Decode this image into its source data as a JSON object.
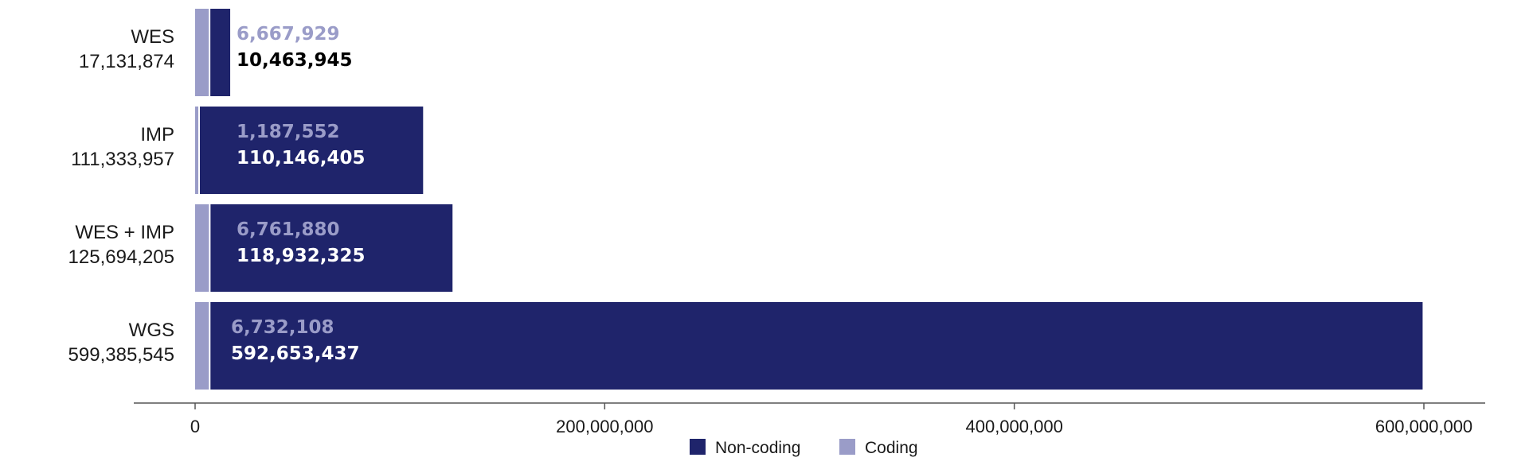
{
  "chart_data": {
    "type": "bar",
    "orientation": "horizontal",
    "stacked": true,
    "categories": [
      {
        "name": "WES",
        "total_label": "17,131,874",
        "total": 17131874
      },
      {
        "name": "IMP",
        "total_label": "111,333,957",
        "total": 111333957
      },
      {
        "name": "WES + IMP",
        "total_label": "125,694,205",
        "total": 125694205
      },
      {
        "name": "WGS",
        "total_label": "599,385,545",
        "total": 599385545
      }
    ],
    "series": [
      {
        "name": "Coding",
        "color": "#9a9cc8",
        "values": [
          6667929,
          1187552,
          6761880,
          6732108
        ],
        "labels": [
          "6,667,929",
          "1,187,552",
          "6,761,880",
          "6,732,108"
        ]
      },
      {
        "name": "Non-coding",
        "color": "#1f246b",
        "values": [
          10463945,
          110146405,
          118932325,
          592653437
        ],
        "labels": [
          "10,463,945",
          "110,146,405",
          "118,932,325",
          "592,653,437"
        ]
      }
    ],
    "xlim": [
      0,
      600000000
    ],
    "xticks": [
      0,
      200000000,
      400000000,
      600000000
    ],
    "xtick_labels": [
      "0",
      "200,000,000",
      "400,000,000",
      "600,000,000"
    ],
    "legend": {
      "position": "bottom-center",
      "entries": [
        {
          "label": "Non-coding",
          "color": "#1f246b"
        },
        {
          "label": "Coding",
          "color": "#9a9cc8"
        }
      ]
    },
    "grid": false,
    "title": "",
    "xlabel": "",
    "ylabel": ""
  }
}
